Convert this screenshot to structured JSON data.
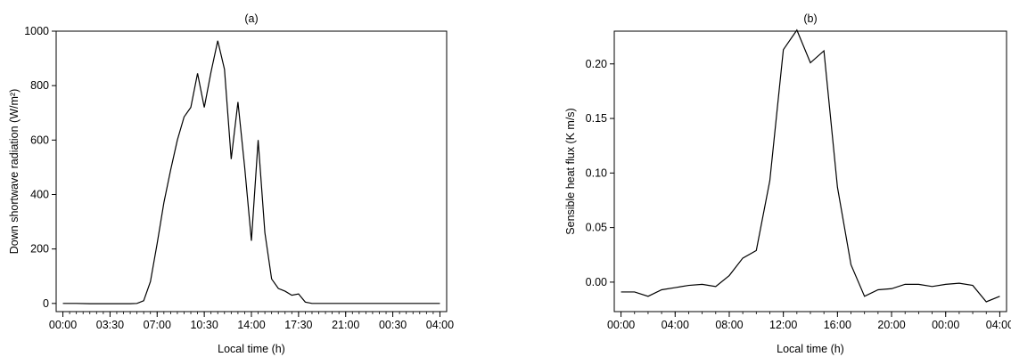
{
  "chart_data": [
    {
      "type": "line",
      "title": "(a)",
      "xlabel": "Local time (h)",
      "ylabel": "Down shortwave radiation (W/m²)",
      "xlim": [
        -0.5,
        28.5
      ],
      "ylim": [
        -30,
        1000
      ],
      "x_ticks": [
        0,
        3.5,
        7,
        10.5,
        14,
        17.5,
        21,
        24.5,
        28
      ],
      "x_tick_labels": [
        "00:00",
        "03:30",
        "07:00",
        "10:30",
        "14:00",
        "17:30",
        "21:00",
        "00:30",
        "04:00"
      ],
      "y_ticks": [
        0,
        200,
        400,
        600,
        800,
        1000
      ],
      "y_tick_labels": [
        "0",
        "200",
        "400",
        "600",
        "800",
        "1000"
      ],
      "minor_tick_step": 0.5,
      "grid": false,
      "series": [
        {
          "color": "#000000",
          "x": [
            0,
            1,
            2,
            3,
            4,
            5,
            5.5,
            6,
            6.5,
            7,
            7.5,
            8,
            8.5,
            9,
            9.5,
            10,
            10.5,
            11,
            11.5,
            12,
            12.5,
            13,
            13.5,
            14,
            14.5,
            15,
            15.5,
            16,
            16.5,
            17,
            17.5,
            18,
            18.5,
            19,
            20,
            22,
            24,
            26,
            28
          ],
          "y": [
            0,
            0,
            -1,
            -1,
            -1,
            -1,
            0,
            10,
            80,
            220,
            370,
            490,
            600,
            685,
            720,
            845,
            720,
            850,
            965,
            860,
            530,
            740,
            500,
            230,
            600,
            260,
            90,
            55,
            45,
            30,
            35,
            5,
            0,
            0,
            0,
            0,
            0,
            0,
            0
          ]
        }
      ]
    },
    {
      "type": "line",
      "title": "(b)",
      "xlabel": "Local time (h)",
      "ylabel": "Sensible heat flux (K m/s)",
      "xlim": [
        -0.5,
        28.5
      ],
      "ylim": [
        -0.027,
        0.23
      ],
      "x_ticks": [
        0,
        4,
        8,
        12,
        16,
        20,
        24,
        28
      ],
      "x_tick_labels": [
        "00:00",
        "04:00",
        "08:00",
        "12:00",
        "16:00",
        "20:00",
        "00:00",
        "04:00"
      ],
      "y_ticks": [
        0.0,
        0.05,
        0.1,
        0.15,
        0.2
      ],
      "y_tick_labels": [
        "0.00",
        "0.05",
        "0.10",
        "0.15",
        "0.20"
      ],
      "minor_tick_step": 1,
      "grid": false,
      "series": [
        {
          "color": "#000000",
          "x": [
            0,
            1,
            2,
            3,
            4,
            5,
            6,
            7,
            8,
            9,
            10,
            11,
            12,
            13,
            14,
            15,
            16,
            17,
            18,
            19,
            20,
            21,
            22,
            23,
            24,
            25,
            26,
            27,
            28
          ],
          "y": [
            -0.009,
            -0.009,
            -0.013,
            -0.007,
            -0.005,
            -0.003,
            -0.002,
            -0.004,
            0.006,
            0.022,
            0.029,
            0.093,
            0.213,
            0.231,
            0.201,
            0.212,
            0.087,
            0.016,
            -0.013,
            -0.007,
            -0.006,
            -0.002,
            -0.002,
            -0.004,
            -0.002,
            -0.001,
            -0.003,
            -0.018,
            -0.013
          ]
        }
      ]
    }
  ]
}
